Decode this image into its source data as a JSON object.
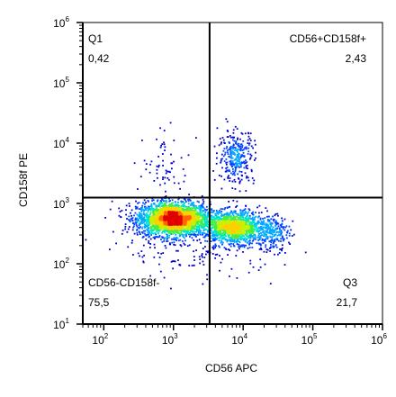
{
  "chart_data": {
    "type": "scatter",
    "title": "",
    "xlabel": "CD56 APC",
    "ylabel": "CD158f PE",
    "x_scale": "log",
    "y_scale": "log",
    "xlim": [
      50,
      1000000
    ],
    "ylim": [
      10,
      1000000
    ],
    "x_ticks": [
      {
        "base": "10",
        "exp": "2",
        "value": 100
      },
      {
        "base": "10",
        "exp": "3",
        "value": 1000
      },
      {
        "base": "10",
        "exp": "4",
        "value": 10000
      },
      {
        "base": "10",
        "exp": "5",
        "value": 100000
      },
      {
        "base": "10",
        "exp": "6",
        "value": 1000000
      }
    ],
    "y_ticks": [
      {
        "base": "10",
        "exp": "1",
        "value": 10
      },
      {
        "base": "10",
        "exp": "2",
        "value": 100
      },
      {
        "base": "10",
        "exp": "3",
        "value": 1000
      },
      {
        "base": "10",
        "exp": "4",
        "value": 10000
      },
      {
        "base": "10",
        "exp": "5",
        "value": 100000
      },
      {
        "base": "10",
        "exp": "6",
        "value": 1000000
      }
    ],
    "gates": {
      "x": 3300,
      "y": 1250
    },
    "quadrants": [
      {
        "position": "top-left",
        "name": "Q1",
        "value": "0,42"
      },
      {
        "position": "top-right",
        "name": "CD56+CD158f+",
        "value": "2,43"
      },
      {
        "position": "bottom-left",
        "name": "CD56-CD158f-",
        "value": "75,5"
      },
      {
        "position": "bottom-right",
        "name": "Q3",
        "value": "21,7"
      }
    ],
    "populations": [
      {
        "cx": 1000,
        "cy": 550,
        "sx": 0.26,
        "sy": 0.14,
        "n": 2600
      },
      {
        "cx": 7500,
        "cy": 400,
        "sx": 0.2,
        "sy": 0.13,
        "n": 1300
      },
      {
        "cx": 25000,
        "cy": 320,
        "sx": 0.13,
        "sy": 0.15,
        "n": 260
      },
      {
        "cx": 8000,
        "cy": 6000,
        "sx": 0.13,
        "sy": 0.22,
        "n": 300
      },
      {
        "cx": 800,
        "cy": 4500,
        "sx": 0.17,
        "sy": 0.25,
        "n": 60
      },
      {
        "cx": 2500,
        "cy": 160,
        "sx": 0.55,
        "sy": 0.22,
        "n": 150
      }
    ],
    "density_colors": [
      "#0000cc",
      "#0044ff",
      "#00a8ff",
      "#00e6c8",
      "#44ee44",
      "#c8f000",
      "#ffd000",
      "#ff6600",
      "#e00000"
    ],
    "grid": false,
    "legend": "none"
  }
}
